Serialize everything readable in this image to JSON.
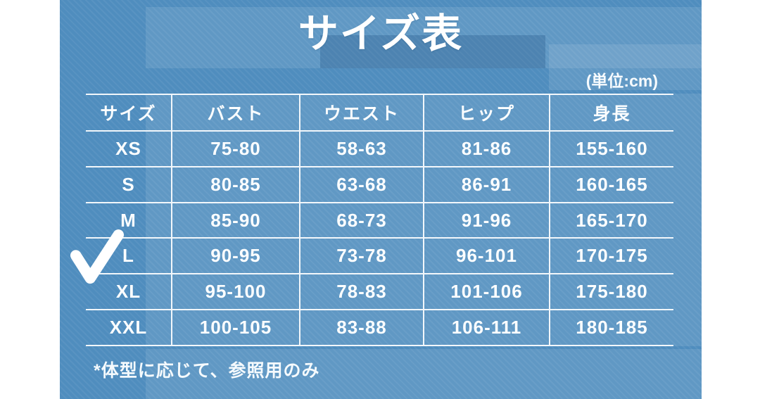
{
  "page": {
    "title": "サイズ表",
    "unit_label": "(単位:cm)",
    "footnote": "*体型に応じて、参照用のみ"
  },
  "table": {
    "headers": [
      "サイズ",
      "バスト",
      "ウエスト",
      "ヒップ",
      "身長"
    ],
    "rows": [
      {
        "size": "XS",
        "bust": "75-80",
        "waist": "58-63",
        "hip": "81-86",
        "height": "155-160",
        "checked": false
      },
      {
        "size": "S",
        "bust": "80-85",
        "waist": "63-68",
        "hip": "86-91",
        "height": "160-165",
        "checked": false
      },
      {
        "size": "M",
        "bust": "85-90",
        "waist": "68-73",
        "hip": "91-96",
        "height": "165-170",
        "checked": false
      },
      {
        "size": "L",
        "bust": "90-95",
        "waist": "73-78",
        "hip": "96-101",
        "height": "170-175",
        "checked": true
      },
      {
        "size": "XL",
        "bust": "95-100",
        "waist": "78-83",
        "hip": "101-106",
        "height": "175-180",
        "checked": false
      },
      {
        "size": "XXL",
        "bust": "100-105",
        "waist": "83-88",
        "hip": "106-111",
        "height": "180-185",
        "checked": false
      }
    ]
  },
  "icons": {
    "check": "hand-drawn white checkmark marking selected size L"
  },
  "colors": {
    "page_margin": "#FFFFFF",
    "background_blue": "#4F8DBE",
    "table_panel_blue": "#639DC8",
    "title_band_blue": "#447FB0",
    "text": "#FFFFFF",
    "table_lines": "#FFFFFF"
  }
}
